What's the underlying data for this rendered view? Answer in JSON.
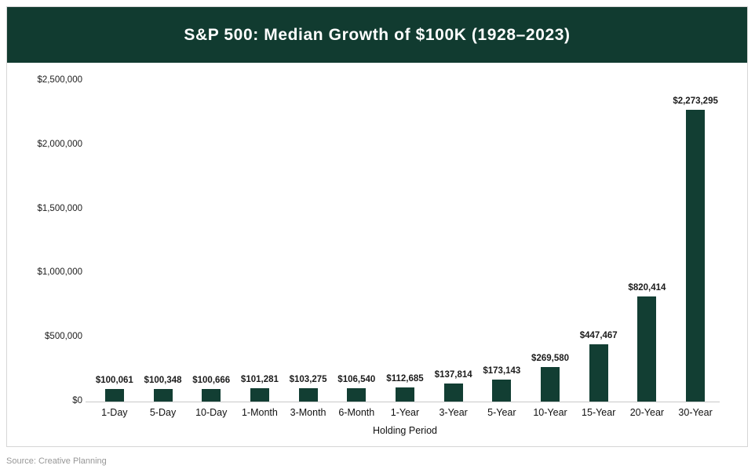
{
  "header": {
    "title": "S&P 500: Median Growth of $100K (1928–2023)"
  },
  "source": {
    "label": "Source: Creative Planning"
  },
  "chart_data": {
    "type": "bar",
    "title": "S&P 500: Median Growth of $100K (1928–2023)",
    "categories": [
      "1-Day",
      "5-Day",
      "10-Day",
      "1-Month",
      "3-Month",
      "6-Month",
      "1-Year",
      "3-Year",
      "5-Year",
      "10-Year",
      "15-Year",
      "20-Year",
      "30-Year"
    ],
    "values": [
      100061,
      100348,
      100666,
      101281,
      103275,
      106540,
      112685,
      137814,
      173143,
      269580,
      447467,
      820414,
      2273295
    ],
    "value_labels": [
      "$100,061",
      "$100,348",
      "$100,666",
      "$101,281",
      "$103,275",
      "$106,540",
      "$112,685",
      "$137,814",
      "$173,143",
      "$269,580",
      "$447,467",
      "$820,414",
      "$2,273,295"
    ],
    "xlabel": "Holding Period",
    "ylabel": "",
    "ylim": [
      0,
      2500000
    ],
    "yticks": [
      0,
      500000,
      1000000,
      1500000,
      2000000,
      2500000
    ],
    "ytick_labels": [
      "$0",
      "$500,000",
      "$1,000,000",
      "$1,500,000",
      "$2,000,000",
      "$2,500,000"
    ],
    "grid": false,
    "legend": false,
    "bar_color": "#123e33"
  },
  "colors": {
    "banner": "#113b30",
    "bar": "#123e33",
    "card_border": "#d6d6d6",
    "axis_line": "#c9c9c9",
    "source_text": "#979797"
  }
}
